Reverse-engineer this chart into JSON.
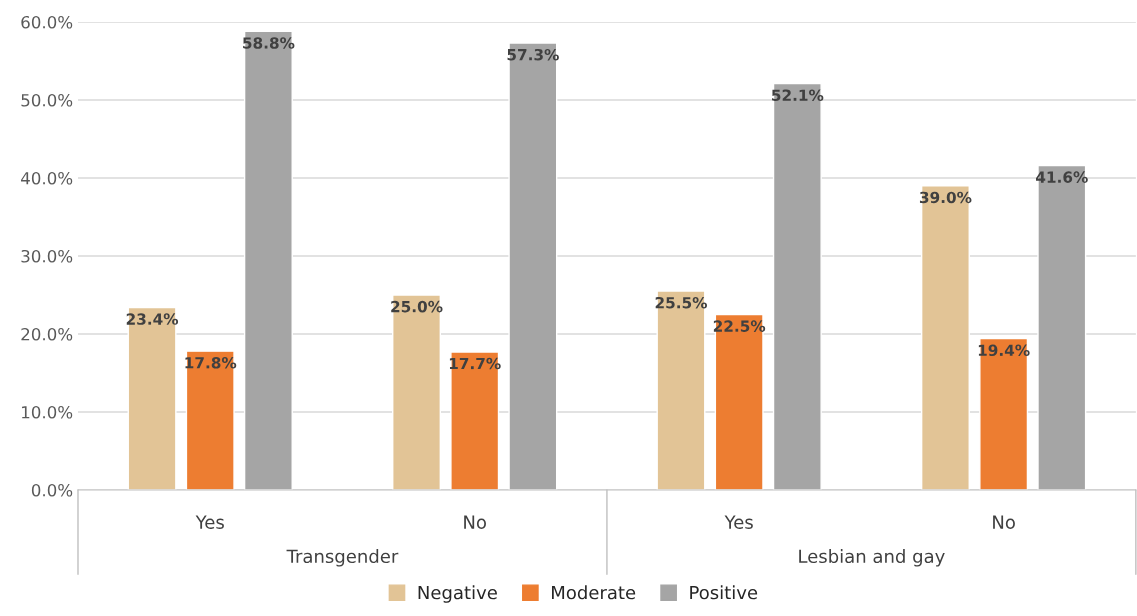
{
  "chart_data": {
    "type": "bar",
    "categories": [
      "Yes",
      "No",
      "Yes",
      "No"
    ],
    "series": [
      {
        "name": "Negative",
        "color": "#e2c496",
        "values": [
          23.4,
          25.0,
          25.5,
          39.0
        ],
        "value_labels": [
          "23.4%",
          "25.0%",
          "25.5%",
          "39.0%"
        ]
      },
      {
        "name": "Moderate",
        "color": "#ed7d31",
        "values": [
          17.8,
          17.7,
          22.5,
          19.4
        ],
        "value_labels": [
          "17.8%",
          "17.7%",
          "22.5%",
          "19.4%"
        ]
      },
      {
        "name": "Positive",
        "color": "#a5a5a5",
        "values": [
          58.8,
          57.3,
          52.1,
          41.6
        ],
        "value_labels": [
          "58.8%",
          "57.3%",
          "52.1%",
          "41.6%"
        ]
      }
    ],
    "annotations": [
      "Transgender",
      "Lesbian and gay"
    ],
    "ylim": [
      0,
      60
    ],
    "yticks": [
      {
        "value": 0,
        "label": "0.0%"
      },
      {
        "value": 10,
        "label": "10.0%"
      },
      {
        "value": 20,
        "label": "20.0%"
      },
      {
        "value": 30,
        "label": "30.0%"
      },
      {
        "value": 40,
        "label": "40.0%"
      },
      {
        "value": 50,
        "label": "50.0%"
      },
      {
        "value": 60,
        "label": "60.0%"
      }
    ],
    "grid": "y",
    "legend": "bottom"
  }
}
